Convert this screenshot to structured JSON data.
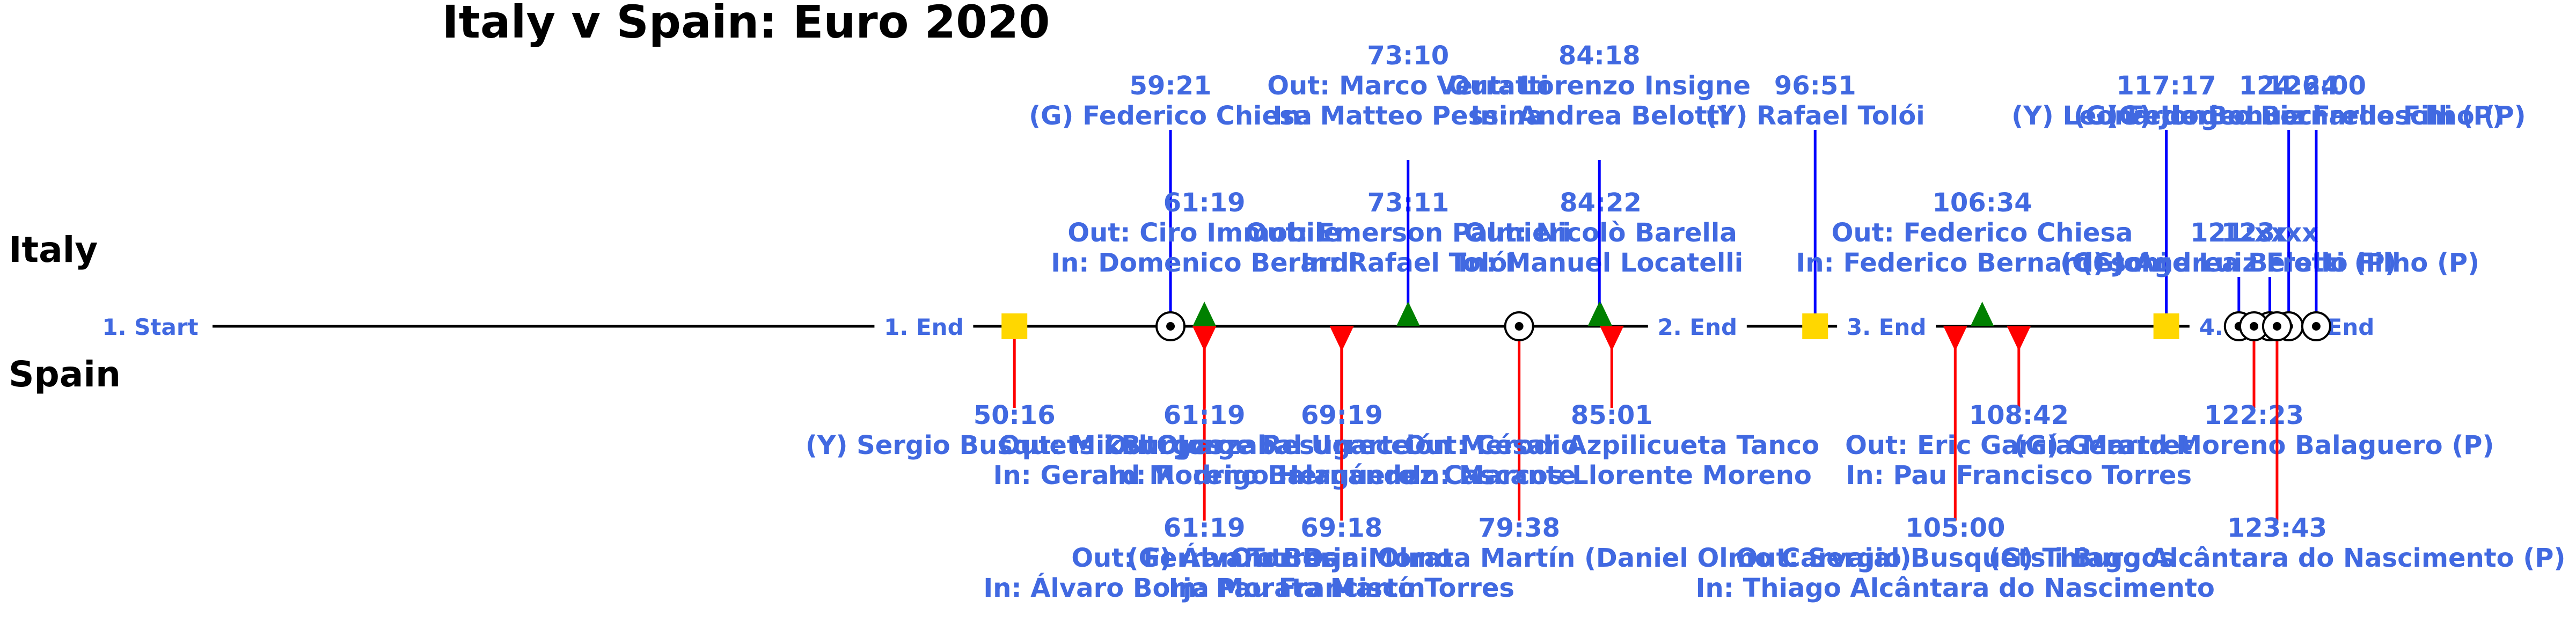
{
  "chart_data": {
    "type": "timeline",
    "title": "Italy v Spain: Euro 2020",
    "teams": {
      "home": "Italy",
      "away": "Spain"
    },
    "colors": {
      "home": "#0000ff",
      "away": "#ff0000",
      "text": "#4169e1",
      "goal_sub_home": "#008000",
      "card": "#ffd700"
    },
    "markers": [
      {
        "t": 0.0,
        "label": "1. Start"
      },
      {
        "t": 45.0,
        "label": "1. End"
      },
      {
        "t": 90.0,
        "label": "2. End"
      },
      {
        "t": 101.0,
        "label": "3. End"
      },
      {
        "t": 121.5,
        "label": "4. End"
      },
      {
        "t": 128.0,
        "label": "End"
      }
    ],
    "events": [
      {
        "team": "Spain",
        "time": "50:16",
        "t": 50.27,
        "type": "card",
        "lines": [
          "(Y) Sergio Busquets i Burgos"
        ]
      },
      {
        "team": "Italy",
        "time": "59:21",
        "t": 59.35,
        "type": "goal",
        "lines": [
          "(G) Federico Chiesa"
        ]
      },
      {
        "team": "Italy",
        "time": "61:19",
        "t": 61.32,
        "type": "sub",
        "lines": [
          "Out: Ciro Immobile",
          "In: Domenico Berardi"
        ]
      },
      {
        "team": "Spain",
        "time": "61:19",
        "t": 61.32,
        "type": "sub",
        "lines": [
          "Out: Ferran Torres",
          "In: Álvaro Borja Morata Martín"
        ]
      },
      {
        "team": "Spain",
        "time": "61:19",
        "t": 61.32,
        "type": "sub",
        "lines": [
          "Out: Mikel Oyarzabal Ugarte",
          "In: Gerard Moreno Balaguero"
        ]
      },
      {
        "team": "Spain",
        "time": "69:18",
        "t": 69.3,
        "type": "sub",
        "lines": [
          "Out: Dani Olmo",
          "In: Pau Francisco Torres"
        ]
      },
      {
        "team": "Italy",
        "time": "73:11",
        "t": 73.18,
        "type": "sub",
        "lines": [
          "Out: Emerson Palmieri",
          "In: Rafael Tolói"
        ]
      },
      {
        "team": "Italy",
        "time": "73:10",
        "t": 73.17,
        "type": "sub",
        "lines": [
          "Out: Marco Verratti",
          "In: Matteo Pessina"
        ]
      },
      {
        "team": "Spain",
        "time": "69:19",
        "t": 69.32,
        "type": "sub",
        "lines": [
          "Out: Jorge Resurrección Merodio",
          "In: Rodrigo Hernández Cascante"
        ]
      },
      {
        "team": "Spain",
        "time": "79:38",
        "t": 79.63,
        "type": "goal",
        "lines": [
          "(G) Álvaro Borja Morata Martín (Daniel Olmo Carvajal)"
        ]
      },
      {
        "team": "Italy",
        "time": "84:22",
        "t": 84.37,
        "type": "sub",
        "lines": [
          "Out: Nicolò Barella",
          "In: Manuel Locatelli"
        ]
      },
      {
        "team": "Italy",
        "time": "84:18",
        "t": 84.3,
        "type": "sub",
        "lines": [
          "Out: Lorenzo Insigne",
          "In: Andrea Belotti"
        ]
      },
      {
        "team": "Spain",
        "time": "85:01",
        "t": 85.02,
        "type": "sub",
        "lines": [
          "Out: César Azpilicueta Tanco",
          "In: Marcos Llorente Moreno"
        ]
      },
      {
        "team": "Italy",
        "time": "96:51",
        "t": 96.85,
        "type": "card",
        "lines": [
          "(Y) Rafael Tolói"
        ]
      },
      {
        "team": "Italy",
        "time": "106:34",
        "t": 106.57,
        "type": "sub",
        "lines": [
          "Out: Federico Chiesa",
          "In: Federico Bernardeschi"
        ]
      },
      {
        "team": "Spain",
        "time": "105:00",
        "t": 105.0,
        "type": "sub",
        "lines": [
          "Out: Sergio Busquets i Burgos",
          "In: Thiago Alcântara do Nascimento"
        ]
      },
      {
        "team": "Spain",
        "time": "108:42",
        "t": 108.7,
        "type": "sub",
        "lines": [
          "Out: Eric García Martret",
          "In: Pau Francisco Torres"
        ]
      },
      {
        "team": "Italy",
        "time": "117:17",
        "t": 117.28,
        "type": "card",
        "lines": [
          "(Y) Leonardo Bonucci"
        ]
      },
      {
        "team": "Italy",
        "time": "121:xx",
        "t": 121.5,
        "type": "penalty",
        "lines": [
          "(G) Andrea Belotti (P)"
        ]
      },
      {
        "team": "Italy",
        "time": "124:24",
        "t": 124.4,
        "type": "penalty",
        "lines": [
          "(G) Federico Bernardeschi (P)"
        ]
      },
      {
        "team": "Italy",
        "time": "123:xx",
        "t": 123.3,
        "type": "penalty",
        "lines": [
          "(G) Jorge Luiz Frello Filho (P)"
        ]
      },
      {
        "team": "Italy",
        "time": "126:00",
        "t": 126.0,
        "type": "penalty",
        "lines": [
          "(G) Jorge Luiz Frello Filho (P)"
        ]
      },
      {
        "team": "Spain",
        "time": "122:23",
        "t": 122.38,
        "type": "penalty",
        "lines": [
          "(G) Gerard Moreno Balaguero (P)"
        ]
      },
      {
        "team": "Spain",
        "time": "123:43",
        "t": 123.72,
        "type": "penalty",
        "lines": [
          "(G) Thiago Alcântara do Nascimento (P)"
        ]
      }
    ]
  }
}
